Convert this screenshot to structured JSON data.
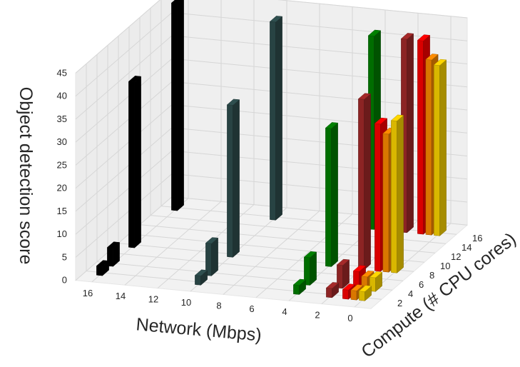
{
  "chart_data": {
    "type": "bar3d",
    "title": "",
    "xlabel": "Network (Mbps)",
    "ylabel": "Compute (# CPU cores)",
    "zlabel": "Object detection score",
    "x_ticks": [
      "16",
      "14",
      "12",
      "10",
      "8",
      "6",
      "4",
      "2",
      "0"
    ],
    "y_ticks": [
      "2",
      "4",
      "6",
      "8",
      "10",
      "12",
      "14",
      "16"
    ],
    "z_ticks": [
      "0",
      "5",
      "10",
      "15",
      "20",
      "25",
      "30",
      "35",
      "40",
      "45"
    ],
    "xlim": [
      17,
      -1
    ],
    "ylim": [
      0,
      18
    ],
    "zlim": [
      0,
      45
    ],
    "grid": true,
    "series": [
      {
        "color": "#000000",
        "network": 16,
        "compute": [
          2,
          4,
          8,
          16
        ],
        "values": [
          2,
          4,
          36,
          45
        ]
      },
      {
        "color": "#2f4f4f",
        "network": 10,
        "compute": [
          2,
          4,
          8,
          16
        ],
        "values": [
          2,
          7,
          33,
          43
        ]
      },
      {
        "color": "#008000",
        "network": 4,
        "compute": [
          2,
          4,
          8,
          16
        ],
        "values": [
          2,
          6,
          30,
          42
        ]
      },
      {
        "color": "#a52a2a",
        "network": 2,
        "compute": [
          2,
          4,
          8,
          16
        ],
        "values": [
          2,
          5,
          37,
          42
        ]
      },
      {
        "color": "#ff0000",
        "network": 1,
        "compute": [
          2,
          4,
          8,
          16
        ],
        "values": [
          2,
          4,
          32,
          42
        ]
      },
      {
        "color": "#ff8c00",
        "network": 0.5,
        "compute": [
          2,
          4,
          8,
          16
        ],
        "values": [
          2,
          3,
          30,
          38
        ]
      },
      {
        "color": "#ffd700",
        "network": 0,
        "compute": [
          2,
          4,
          8,
          16
        ],
        "values": [
          2,
          3,
          33,
          37
        ]
      }
    ]
  }
}
